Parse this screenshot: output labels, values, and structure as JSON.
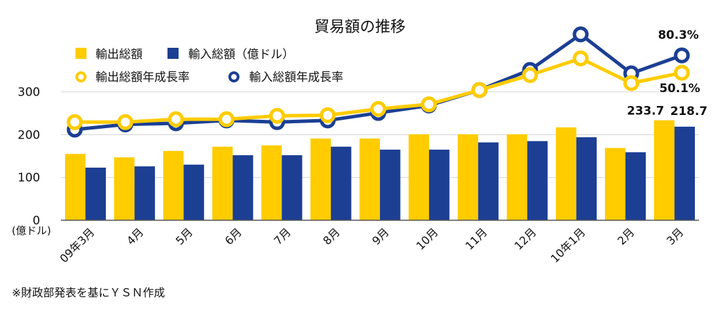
{
  "chart_data": {
    "type": "bar",
    "title": "貿易額の推移",
    "categories": [
      "09年3月",
      "4月",
      "5月",
      "6月",
      "7月",
      "8月",
      "9月",
      "10月",
      "11月",
      "12月",
      "10年1月",
      "2月",
      "3月"
    ],
    "ylabel": "(億ドル)",
    "yticks": [
      0,
      100,
      200,
      300
    ],
    "ylim": [
      0,
      450
    ],
    "grid": true,
    "legend_position": "top-left",
    "series": [
      {
        "name": "輸出総額",
        "type": "bar",
        "color": "#FFCC00",
        "values": [
          155,
          147,
          162,
          172,
          175,
          191,
          191,
          201,
          201,
          201,
          217,
          169,
          233.7
        ],
        "labels": [
          {
            "category": "3月",
            "text": "233.7",
            "position": "above"
          }
        ]
      },
      {
        "name": "輸入総額（億ドル）",
        "type": "bar",
        "color": "#1C3F94",
        "values": [
          123,
          126,
          130,
          152,
          152,
          172,
          165,
          165,
          182,
          185,
          194,
          159,
          218.7
        ],
        "labels": [
          {
            "category": "3月",
            "text": "218.7",
            "position": "above"
          }
        ]
      },
      {
        "name": "輸出総額年成長率",
        "type": "line",
        "axis": "secondary",
        "color": "#FFCC00",
        "values": [
          -36,
          -36,
          -31,
          -31,
          -25,
          -24,
          -13,
          -5,
          20,
          46,
          75,
          32,
          50.1
        ],
        "labels": [
          {
            "category": "3月",
            "text": "50.1%",
            "position": "below"
          }
        ]
      },
      {
        "name": "輸入総額年成長率",
        "type": "line",
        "axis": "secondary",
        "color": "#1C3F94",
        "values": [
          -49,
          -40,
          -38,
          -33,
          -36,
          -33,
          -20,
          -7,
          20,
          55,
          117,
          49,
          80.3
        ],
        "labels": [
          {
            "category": "3月",
            "text": "80.3%",
            "position": "above"
          }
        ]
      }
    ]
  },
  "footnote": "※財政部発表を基にＹＳＮ作成"
}
